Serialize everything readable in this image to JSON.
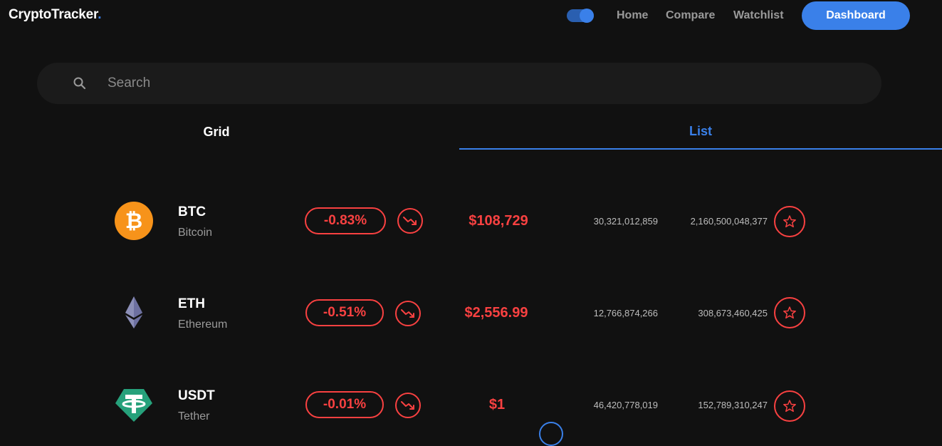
{
  "header": {
    "logo_text": "CryptoTracker",
    "logo_dot": ".",
    "nav": {
      "home": "Home",
      "compare": "Compare",
      "watchlist": "Watchlist"
    },
    "dashboard_label": "Dashboard",
    "theme_toggle_on": true
  },
  "search": {
    "placeholder": "Search",
    "value": ""
  },
  "tabs": {
    "grid": "Grid",
    "list": "List",
    "active": "List"
  },
  "coins": [
    {
      "symbol": "BTC",
      "name": "Bitcoin",
      "change": "-0.83%",
      "price": "$108,729",
      "volume": "30,321,012,859",
      "market_cap": "2,160,500,048,377",
      "logo_icon": "bitcoin-logo-icon",
      "trend_icon": "trending-down-icon"
    },
    {
      "symbol": "ETH",
      "name": "Ethereum",
      "change": "-0.51%",
      "price": "$2,556.99",
      "volume": "12,766,874,266",
      "market_cap": "308,673,460,425",
      "logo_icon": "ethereum-logo-icon",
      "trend_icon": "trending-down-icon"
    },
    {
      "symbol": "USDT",
      "name": "Tether",
      "change": "-0.01%",
      "price": "$1",
      "volume": "46,420,778,019",
      "market_cap": "152,789,310,247",
      "logo_icon": "tether-logo-icon",
      "trend_icon": "trending-down-icon"
    }
  ],
  "colors": {
    "background": "#111111",
    "accent": "#3a80e9",
    "negative": "#f94141",
    "muted_text": "#9a9a9a"
  }
}
